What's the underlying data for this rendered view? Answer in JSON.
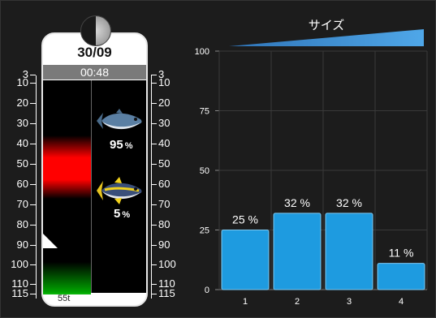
{
  "gauge": {
    "date": "30/09",
    "time": "00:48",
    "depth_label": "55t",
    "scale_ticks": [
      "3",
      "10",
      "20",
      "30",
      "40",
      "50",
      "60",
      "70",
      "80",
      "90",
      "100",
      "110",
      "115"
    ],
    "fish": [
      {
        "icon": "bluefin-tuna-icon",
        "percent": "95",
        "unit": "%"
      },
      {
        "icon": "yellowfin-tuna-icon",
        "percent": "5",
        "unit": "%"
      }
    ]
  },
  "chart_data": {
    "type": "bar",
    "title": "サイズ",
    "categories": [
      "1",
      "2",
      "3",
      "4"
    ],
    "values": [
      25,
      32,
      32,
      11
    ],
    "data_labels": [
      "25 %",
      "32 %",
      "32 %",
      "11 %"
    ],
    "ylim": [
      0,
      100
    ],
    "yticks": [
      "0",
      "25",
      "50",
      "75",
      "100"
    ],
    "grid": true,
    "bar_color": "#1e9be0"
  }
}
